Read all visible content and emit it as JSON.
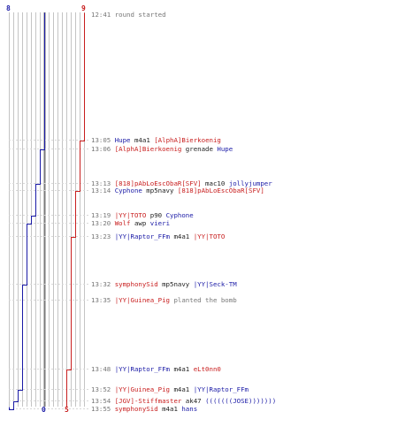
{
  "colors": {
    "blue": "#1a1aa6",
    "red": "#c81e1e",
    "grid": "#c4c4c4",
    "center": "#7a7a7a",
    "text": "#555555"
  },
  "scores": {
    "blue_start": "8",
    "red_start": "9",
    "blue_end": "0",
    "red_end": "5"
  },
  "events": [
    {
      "time": "12:41",
      "parts": [
        {
          "t": "round started",
          "c": "gray"
        }
      ]
    },
    {
      "time": "13:05",
      "parts": [
        {
          "t": "Hupe",
          "c": "blue"
        },
        {
          "t": " m4a1 ",
          "c": "act"
        },
        {
          "t": "[AlphA]Bierkoenig",
          "c": "red"
        }
      ]
    },
    {
      "time": "13:06",
      "parts": [
        {
          "t": "[AlphA]Bierkoenig",
          "c": "red"
        },
        {
          "t": " grenade ",
          "c": "act"
        },
        {
          "t": "Hupe",
          "c": "blue"
        }
      ]
    },
    {
      "time": "13:13",
      "parts": [
        {
          "t": "[818]pAbLoEscObaR[SFV]",
          "c": "red"
        },
        {
          "t": " mac10 ",
          "c": "act"
        },
        {
          "t": "jollyjumper",
          "c": "blue"
        }
      ]
    },
    {
      "time": "13:14",
      "parts": [
        {
          "t": "Cyphone",
          "c": "blue"
        },
        {
          "t": " mp5navy ",
          "c": "act"
        },
        {
          "t": "[818]pAbLoEscObaR[SFV]",
          "c": "red"
        }
      ]
    },
    {
      "time": "13:19",
      "parts": [
        {
          "t": "|YY|TOTO",
          "c": "red"
        },
        {
          "t": " p90 ",
          "c": "act"
        },
        {
          "t": "Cyphone",
          "c": "blue"
        }
      ]
    },
    {
      "time": "13:20",
      "parts": [
        {
          "t": "Wolf",
          "c": "red"
        },
        {
          "t": " awp ",
          "c": "act"
        },
        {
          "t": "vieri",
          "c": "blue"
        }
      ]
    },
    {
      "time": "13:23",
      "parts": [
        {
          "t": "|YY|Raptor_FFm",
          "c": "blue"
        },
        {
          "t": " m4a1 ",
          "c": "act"
        },
        {
          "t": "|YY|TOTO",
          "c": "red"
        }
      ]
    },
    {
      "time": "13:32",
      "parts": [
        {
          "t": "symphonySid",
          "c": "red"
        },
        {
          "t": " mp5navy ",
          "c": "act"
        },
        {
          "t": "|YY|Seck-TM",
          "c": "blue"
        }
      ]
    },
    {
      "time": "13:35",
      "parts": [
        {
          "t": "|YY|Guinea_Pig",
          "c": "red"
        },
        {
          "t": " planted the bomb",
          "c": "gray"
        }
      ]
    },
    {
      "time": "13:48",
      "parts": [
        {
          "t": "|YY|Raptor_FFm",
          "c": "blue"
        },
        {
          "t": " m4a1 ",
          "c": "act"
        },
        {
          "t": "eLt0nn0",
          "c": "red"
        }
      ]
    },
    {
      "time": "13:52",
      "parts": [
        {
          "t": "|YY|Guinea_Pig",
          "c": "red"
        },
        {
          "t": " m4a1 ",
          "c": "act"
        },
        {
          "t": "|YY|Raptor_FFm",
          "c": "blue"
        }
      ]
    },
    {
      "time": "13:54",
      "parts": [
        {
          "t": "[JGV]-Stiffmaster",
          "c": "red"
        },
        {
          "t": " ak47 ",
          "c": "act"
        },
        {
          "t": "(((((((JOSE)))))))",
          "c": "blue"
        }
      ]
    },
    {
      "time": "13:55",
      "parts": [
        {
          "t": "symphonySid",
          "c": "red"
        },
        {
          "t": " m4a1 ",
          "c": "act"
        },
        {
          "t": "hans",
          "c": "blue"
        }
      ]
    }
  ]
}
